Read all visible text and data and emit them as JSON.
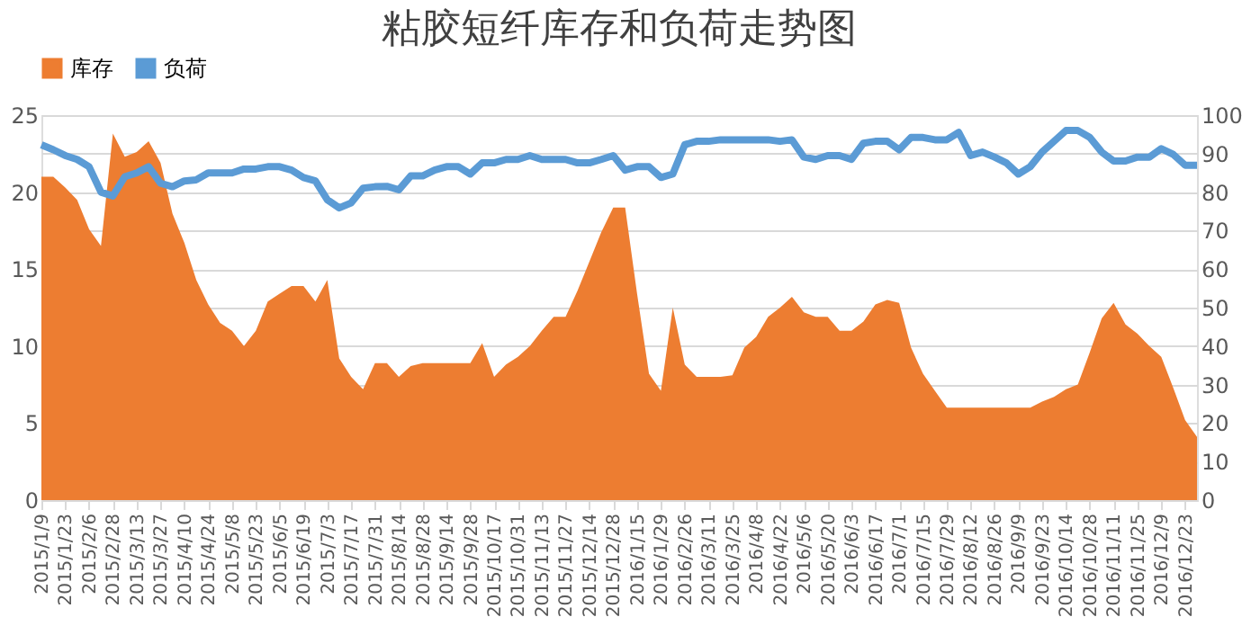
{
  "chart_data": {
    "type": "area",
    "title": "粘胶短纤库存和负荷走势图",
    "categories": [
      "2015/1/9",
      null,
      "2015/1/23",
      null,
      "2015/2/6",
      null,
      "2015/2/28",
      null,
      "2015/3/13",
      null,
      "2015/3/27",
      null,
      "2015/4/10",
      null,
      "2015/4/24",
      null,
      "2015/5/8",
      null,
      "2015/5/23",
      null,
      "2015/6/5",
      null,
      "2015/6/19",
      null,
      "2015/7/3",
      null,
      "2015/7/17",
      null,
      "2015/7/31",
      null,
      "2015/8/14",
      null,
      "2015/8/28",
      null,
      "2015/9/14",
      null,
      "2015/9/28",
      null,
      "2015/10/17",
      null,
      "2015/10/31",
      null,
      "2015/11/13",
      null,
      "2015/11/27",
      null,
      "2015/12/14",
      null,
      "2015/12/28",
      null,
      "2016/1/15",
      null,
      "2016/1/29",
      null,
      "2016/2/26",
      null,
      "2016/3/11",
      null,
      "2016/3/25",
      null,
      "2016/4/8",
      null,
      "2016/4/22",
      null,
      "2016/5/6",
      null,
      "2016/5/20",
      null,
      "2016/6/3",
      null,
      "2016/6/17",
      null,
      "2016/7/1",
      null,
      "2016/7/15",
      null,
      "2016/7/29",
      null,
      "2016/8/12",
      null,
      "2016/8/26",
      null,
      "2016/9/9",
      null,
      "2016/9/23",
      null,
      "2016/10/14",
      null,
      "2016/10/28",
      null,
      "2016/11/11",
      null,
      "2016/11/25",
      null,
      "2016/12/9",
      null,
      "2016/12/23",
      null
    ],
    "series": [
      {
        "name": "库存",
        "color": "#ed7d31",
        "values": [
          21,
          21,
          20.3,
          19.5,
          17.6,
          16.5,
          23.8,
          22.3,
          22.6,
          23.3,
          21.9,
          18.6,
          16.7,
          14.3,
          12.7,
          11.5,
          11,
          10,
          11,
          12.9,
          13.4,
          13.9,
          13.9,
          12.9,
          14.3,
          9.2,
          8,
          7.2,
          8.9,
          8.9,
          8,
          8.7,
          8.9,
          8.9,
          8.9,
          8.9,
          8.9,
          10.2,
          8,
          8.8,
          9.3,
          10,
          11,
          11.9,
          11.9,
          13.6,
          15.5,
          17.4,
          19,
          19,
          13.4,
          8.2,
          7.1,
          12.5,
          8.8,
          8,
          8,
          8,
          8.1,
          9.9,
          10.6,
          11.9,
          12.5,
          13.2,
          12.2,
          11.9,
          11.9,
          11,
          11,
          11.6,
          12.7,
          13,
          12.8,
          9.9,
          8.2,
          7.1,
          6,
          6,
          6,
          6,
          6,
          6,
          6,
          6,
          6.4,
          6.7,
          7.2,
          7.5,
          9.6,
          11.8,
          12.8,
          11.4,
          10.8,
          10,
          9.3,
          7.3,
          5.2,
          4.1
        ]
      },
      {
        "name": "负荷",
        "type": "line",
        "axis": "y2",
        "color": "#5b9bd5",
        "values": [
          92.3,
          91,
          89.5,
          88.5,
          86.6,
          80,
          79,
          84,
          85,
          86.6,
          82.3,
          81.4,
          82.9,
          83.2,
          85,
          85,
          85,
          86,
          86,
          86.6,
          86.6,
          85.7,
          83.8,
          82.9,
          78,
          75.9,
          77.2,
          81,
          81.4,
          81.5,
          80.6,
          84.2,
          84.2,
          85.7,
          86.6,
          86.6,
          84.7,
          87.6,
          87.6,
          88.5,
          88.5,
          89.5,
          88.5,
          88.5,
          88.5,
          87.6,
          87.6,
          88.5,
          89.5,
          85.7,
          86.6,
          86.6,
          83.8,
          84.7,
          92.3,
          93.2,
          93.2,
          93.6,
          93.6,
          93.6,
          93.6,
          93.6,
          93.2,
          93.6,
          89.1,
          88.5,
          89.5,
          89.5,
          88.5,
          92.7,
          93.2,
          93.2,
          91,
          94.2,
          94.2,
          93.6,
          93.6,
          95.5,
          89.5,
          90.4,
          89.1,
          87.6,
          84.7,
          86.6,
          90.4,
          93.2,
          96,
          96,
          94.2,
          90.4,
          88.1,
          88.1,
          89.1,
          89.1,
          91.3,
          89.8,
          87,
          87
        ]
      }
    ],
    "ylim": [
      0,
      25
    ],
    "yticks": [
      0,
      5,
      10,
      15,
      20,
      25
    ],
    "y2lim": [
      0,
      100
    ],
    "y2ticks": [
      0,
      10,
      20,
      30,
      40,
      50,
      60,
      70,
      80,
      90,
      100
    ],
    "grid": true,
    "legend": "top"
  }
}
